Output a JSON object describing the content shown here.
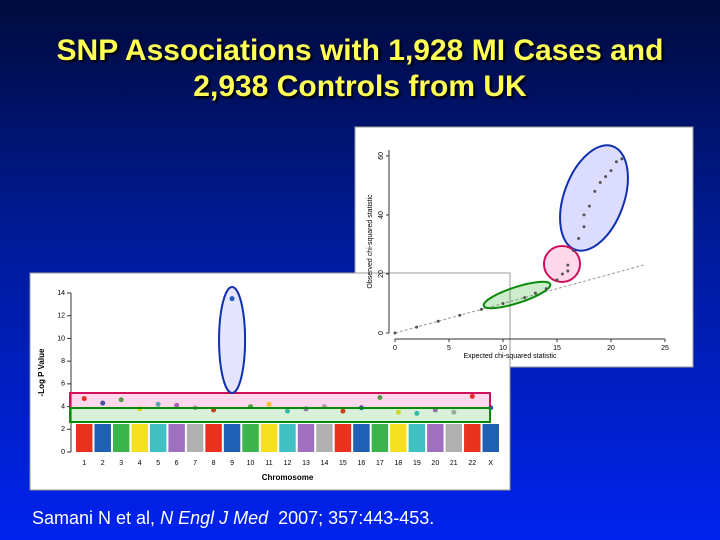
{
  "title": [
    "SNP Associations with 1,928 MI Cases and",
    "2,938 Controls from UK"
  ],
  "citation": [
    "Samani N et al, ",
    "N Engl J Med",
    "  2007; 357:443-453."
  ],
  "chart_data": [
    {
      "type": "manhattan",
      "ylabel": "-Log P Value",
      "xlabel": "Chromosome",
      "categories": [
        "1",
        "2",
        "3",
        "4",
        "5",
        "6",
        "7",
        "8",
        "9",
        "10",
        "11",
        "12",
        "13",
        "14",
        "15",
        "16",
        "17",
        "18",
        "19",
        "20",
        "21",
        "22",
        "X"
      ],
      "values": [
        4.7,
        4.3,
        4.6,
        3.8,
        4.2,
        4.1,
        3.9,
        3.7,
        13.5,
        4.0,
        4.2,
        3.6,
        3.8,
        4.0,
        3.6,
        3.9,
        4.8,
        3.5,
        3.4,
        3.7,
        3.5,
        4.9,
        3.9
      ],
      "colors": [
        "#e8321e",
        "#1f5fb4",
        "#3cb44b",
        "#f5e020",
        "#40c0c0",
        "#a070c0",
        "#b0b0b0"
      ],
      "ylim": [
        0,
        14
      ],
      "yticks": [
        0,
        2,
        4,
        6,
        8,
        10,
        12,
        14
      ]
    },
    {
      "type": "scatter",
      "xlabel": "Expected chi-squared statistic",
      "ylabel": "Observed chi-squared statistic",
      "x": [
        0,
        2,
        4,
        6,
        8,
        10,
        12,
        13,
        14,
        15,
        15.5,
        16,
        16,
        16.5,
        17,
        17.5,
        17.5,
        18,
        18.5,
        19,
        19.5,
        20,
        20.5,
        21
      ],
      "values": [
        0,
        2,
        4,
        6,
        8,
        10,
        12,
        13.5,
        15,
        18,
        20,
        21,
        23,
        28,
        32,
        36,
        40,
        43,
        48,
        51,
        53,
        55,
        58,
        59
      ],
      "color": "#555555",
      "xlim": [
        0,
        25
      ],
      "ylim": [
        0,
        62
      ],
      "xticks": [
        0,
        5,
        10,
        15,
        20,
        25
      ],
      "yticks": [
        0,
        20,
        40,
        60
      ]
    }
  ]
}
